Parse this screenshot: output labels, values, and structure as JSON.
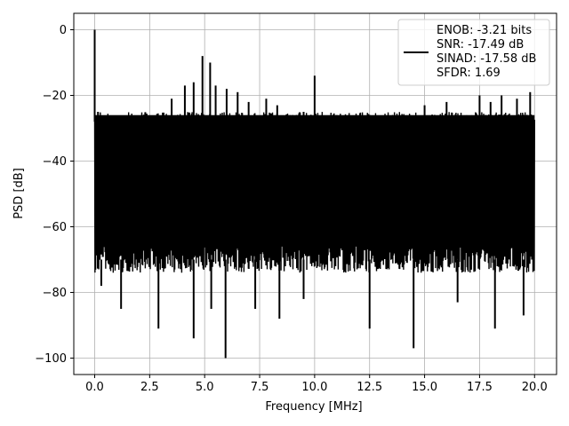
{
  "chart_data": {
    "type": "line",
    "title": "",
    "xlabel": "Frequency [MHz]",
    "ylabel": "PSD [dB]",
    "xlim": [
      -0.95,
      21.0
    ],
    "ylim": [
      -105,
      5
    ],
    "grid": true,
    "x_ticks": [
      0.0,
      2.5,
      5.0,
      7.5,
      10.0,
      12.5,
      15.0,
      17.5,
      20.0
    ],
    "x_tick_labels": [
      "0.0",
      "2.5",
      "5.0",
      "7.5",
      "10.0",
      "12.5",
      "15.0",
      "17.5",
      "20.0"
    ],
    "y_ticks": [
      0,
      -20,
      -40,
      -60,
      -80,
      -100
    ],
    "y_tick_labels": [
      "0",
      "−20",
      "−40",
      "−60",
      "−80",
      "−100"
    ],
    "series": [
      {
        "color": "#000000",
        "x_range": [
          0.0,
          20.0
        ],
        "noise_floor_top": -28,
        "noise_floor_bottom": -70,
        "peaks": [
          {
            "x": 0.0,
            "y": 0.0
          },
          {
            "x": 0.15,
            "y": -25
          },
          {
            "x": 2.4,
            "y": -28
          },
          {
            "x": 3.5,
            "y": -21
          },
          {
            "x": 4.1,
            "y": -17
          },
          {
            "x": 4.5,
            "y": -16
          },
          {
            "x": 4.9,
            "y": -8
          },
          {
            "x": 5.25,
            "y": -10
          },
          {
            "x": 5.5,
            "y": -17
          },
          {
            "x": 6.0,
            "y": -18
          },
          {
            "x": 6.5,
            "y": -19
          },
          {
            "x": 7.0,
            "y": -22
          },
          {
            "x": 7.8,
            "y": -21
          },
          {
            "x": 8.3,
            "y": -23
          },
          {
            "x": 9.0,
            "y": -26
          },
          {
            "x": 9.5,
            "y": -25
          },
          {
            "x": 10.0,
            "y": -14
          },
          {
            "x": 11.0,
            "y": -26
          },
          {
            "x": 12.5,
            "y": -26
          },
          {
            "x": 13.2,
            "y": -27
          },
          {
            "x": 14.0,
            "y": -26
          },
          {
            "x": 15.0,
            "y": -23
          },
          {
            "x": 16.0,
            "y": -22
          },
          {
            "x": 17.5,
            "y": -20
          },
          {
            "x": 18.0,
            "y": -22
          },
          {
            "x": 18.5,
            "y": -20
          },
          {
            "x": 19.2,
            "y": -21
          },
          {
            "x": 19.8,
            "y": -19
          }
        ],
        "dips": [
          {
            "x": 0.3,
            "y": -78
          },
          {
            "x": 1.2,
            "y": -85
          },
          {
            "x": 2.9,
            "y": -91
          },
          {
            "x": 4.5,
            "y": -94
          },
          {
            "x": 5.3,
            "y": -85
          },
          {
            "x": 5.95,
            "y": -100
          },
          {
            "x": 7.3,
            "y": -85
          },
          {
            "x": 8.4,
            "y": -88
          },
          {
            "x": 9.5,
            "y": -82
          },
          {
            "x": 12.5,
            "y": -91
          },
          {
            "x": 14.5,
            "y": -97
          },
          {
            "x": 16.5,
            "y": -83
          },
          {
            "x": 18.2,
            "y": -91
          },
          {
            "x": 19.5,
            "y": -87
          }
        ]
      }
    ],
    "legend": {
      "position": "top-right",
      "entries": [
        "ENOB: -3.21 bits",
        "SNR: -17.49 dB",
        "SINAD: -17.58 dB",
        "SFDR: 1.69"
      ]
    }
  }
}
